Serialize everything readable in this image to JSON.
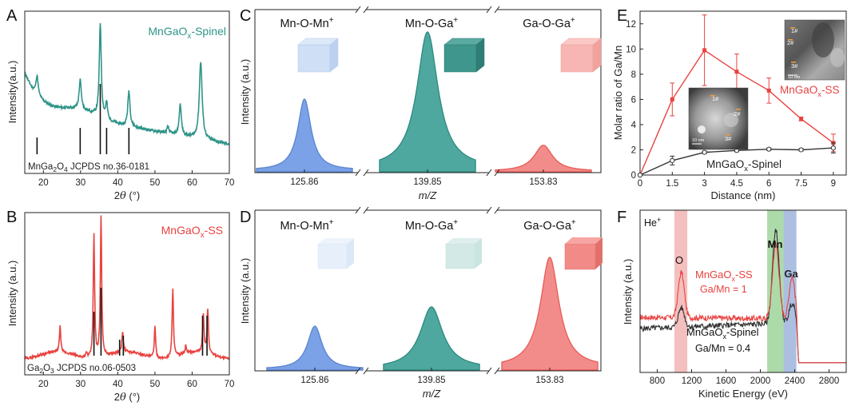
{
  "colors": {
    "teal": "#2e9488",
    "red": "#e8423f",
    "blue": "#7ba2e6",
    "black": "#333333",
    "ssband": "#f2b4b4",
    "mnband": "#9fd39a",
    "gaband": "#9db4dc"
  },
  "panel_A": {
    "label": "A",
    "legend": "MnGaO",
    "legend_sub": "x",
    "legend_tail": "-Spinel",
    "ylabel": "Intensity(a.u.)",
    "xlabel_pre": "2",
    "xlabel_sym": "θ",
    "xlabel_post": " (°)",
    "ref_pre": "MnGa",
    "ref_sub1": "2",
    "ref_mid": "O",
    "ref_sub2": "4",
    "ref_post": " JCPDS no.36-0181",
    "ref_lines": [
      18.3,
      29.9,
      35.3,
      37.0,
      43.0
    ],
    "xticks": [
      "20",
      "30",
      "40",
      "50",
      "60",
      "70"
    ]
  },
  "panel_B": {
    "label": "B",
    "legend": "MnGaO",
    "legend_sub": "x",
    "legend_tail": "-SS",
    "ylabel": "Intensity (a.u.)",
    "xlabel_pre": "2",
    "xlabel_sym": "θ",
    "xlabel_post": " (°)",
    "ref_pre": "Ga",
    "ref_sub1": "2",
    "ref_mid": "O",
    "ref_sub2": "3",
    "ref_post": " JCPDS no.06-0503",
    "ref_lines": [
      33.6,
      35.5,
      40.5,
      41.5,
      62.8,
      64.0
    ],
    "xticks": [
      "20",
      "30",
      "40",
      "50",
      "60",
      "70"
    ]
  },
  "panel_C": {
    "label": "C",
    "ylabel": "Intensity (a.u.)",
    "xlabel": "m/Z",
    "peaks": [
      {
        "name": "Mn-O-Mn",
        "sup": "+",
        "mz": "125.86"
      },
      {
        "name": "Mn-O-Ga",
        "sup": "+",
        "mz": "139.85"
      },
      {
        "name": "Ga-O-Ga",
        "sup": "+",
        "mz": "153.83"
      }
    ]
  },
  "panel_D": {
    "label": "D",
    "ylabel": "Intensity (a.u.)",
    "xlabel": "m/Z",
    "peaks": [
      {
        "name": "Mn-O-Mn",
        "sup": "+",
        "mz": "125.86"
      },
      {
        "name": "Mn-O-Ga",
        "sup": "+",
        "mz": "139.85"
      },
      {
        "name": "Ga-O-Ga",
        "sup": "+",
        "mz": "153.83"
      }
    ]
  },
  "panel_E": {
    "label": "E",
    "ylabel": "Molar ratio of Ga/Mn",
    "xlabel": "Distance (nm)",
    "legend_ss": "MnGaO",
    "legend_ss_sub": "x",
    "legend_ss_tail": "-SS",
    "legend_sp": "MnGaO",
    "legend_sp_sub": "x",
    "legend_sp_tail": "-Spinel",
    "inset_labels": [
      "1#",
      "2#",
      "3#"
    ],
    "scale_bar": "10 nm"
  },
  "panel_F": {
    "label": "F",
    "ion": "He",
    "ion_sup": "+",
    "ylabel": "Intensity (a.u.)",
    "xlabel": "Kinetic Energy (eV)",
    "elem_o": "O",
    "elem_mn": "Mn",
    "elem_ga": "Ga",
    "ss_label": "MnGaO",
    "ss_sub": "x",
    "ss_tail": "-SS",
    "ss_ratio": "Ga/Mn = 1",
    "sp_label": "MnGaO",
    "sp_sub": "x",
    "sp_tail": "-Spinel",
    "sp_ratio": "Ga/Mn = 0.4"
  },
  "chart_data": [
    {
      "type": "line",
      "title": "",
      "panel": "A",
      "xlabel": "2θ (°)",
      "ylabel": "Intensity(a.u.)",
      "xlim": [
        15,
        70
      ],
      "series": [
        {
          "name": "MnGaOx-Spinel",
          "x": [
            15,
            18.3,
            23,
            29.9,
            35.3,
            37.0,
            43.0,
            53.5,
            56.8,
            62.3,
            70
          ],
          "y": [
            0.58,
            0.72,
            0.45,
            0.62,
            1.0,
            0.6,
            0.58,
            0.36,
            0.49,
            0.75,
            0.33
          ]
        }
      ]
    },
    {
      "type": "line",
      "title": "",
      "panel": "B",
      "xlabel": "2θ (°)",
      "ylabel": "Intensity (a.u.)",
      "xlim": [
        15,
        70
      ],
      "series": [
        {
          "name": "MnGaOx-SS",
          "x": [
            15,
            24.5,
            31.6,
            33.6,
            35.5,
            41.3,
            50,
            54.8,
            58.3,
            63,
            64.2,
            70
          ],
          "y": [
            0.16,
            0.3,
            0.13,
            0.9,
            1.0,
            0.26,
            0.32,
            0.55,
            0.18,
            0.37,
            0.4,
            0.12
          ]
        }
      ]
    },
    {
      "type": "area",
      "title": "",
      "panel": "C",
      "categories": [
        "125.86",
        "139.85",
        "153.83"
      ],
      "series": [
        {
          "name": "Relative intensity",
          "values": [
            0.52,
            1.0,
            0.19
          ]
        }
      ]
    },
    {
      "type": "area",
      "title": "",
      "panel": "D",
      "categories": [
        "125.86",
        "139.85",
        "153.83"
      ],
      "series": [
        {
          "name": "Relative intensity",
          "values": [
            0.39,
            0.56,
            1.0
          ]
        }
      ]
    },
    {
      "type": "line",
      "title": "",
      "panel": "E",
      "xlabel": "Distance (nm)",
      "ylabel": "Molar ratio of Ga/Mn",
      "xlim": [
        0,
        9.6
      ],
      "ylim": [
        0,
        13
      ],
      "xticks": [
        0,
        1.5,
        3,
        4.5,
        6,
        7.5,
        9
      ],
      "yticks": [
        0,
        2,
        4,
        6,
        8,
        10,
        12
      ],
      "series": [
        {
          "name": "MnGaOx-SS",
          "color": "#e8423f",
          "x": [
            0,
            1.5,
            3,
            4.5,
            6,
            7.5,
            9
          ],
          "y": [
            0,
            6.0,
            9.9,
            8.2,
            6.7,
            4.45,
            2.55
          ],
          "err": [
            0,
            1.3,
            2.8,
            1.4,
            1.0,
            0.15,
            0.7
          ]
        },
        {
          "name": "MnGaOx-Spinel",
          "color": "#333333",
          "x": [
            0,
            1.5,
            3,
            4.5,
            6,
            7.5,
            9
          ],
          "y": [
            0,
            1.15,
            1.8,
            1.95,
            2.05,
            2.0,
            2.15
          ],
          "err": [
            0,
            0.35,
            0.1,
            0.1,
            0.1,
            0.1,
            0.4
          ]
        }
      ]
    },
    {
      "type": "line",
      "title": "",
      "panel": "F",
      "xlabel": "Kinetic Energy (eV)",
      "ylabel": "Intensity (a.u.)",
      "xlim": [
        600,
        3000
      ],
      "xticks": [
        800,
        1200,
        1600,
        2000,
        2400,
        2800
      ],
      "bands": [
        {
          "element": "O",
          "from": 1000,
          "to": 1150
        },
        {
          "element": "Mn",
          "from": 2080,
          "to": 2270
        },
        {
          "element": "Ga",
          "from": 2270,
          "to": 2420
        }
      ],
      "series": [
        {
          "name": "MnGaOx-SS (Ga/Mn = 1)",
          "color": "#e8423f",
          "x": [
            600,
            1080,
            2000,
            2180,
            2370,
            2440,
            3000
          ],
          "y": [
            0.34,
            0.62,
            0.36,
            0.88,
            0.62,
            0.06,
            0.06
          ]
        },
        {
          "name": "MnGaOx-Spinel (Ga/Mn = 0.4)",
          "color": "#333333",
          "x": [
            600,
            1080,
            2000,
            2180,
            2370,
            2440,
            3000
          ],
          "y": [
            0.26,
            0.39,
            0.3,
            0.95,
            0.41,
            0.06,
            0.06
          ]
        }
      ]
    }
  ]
}
